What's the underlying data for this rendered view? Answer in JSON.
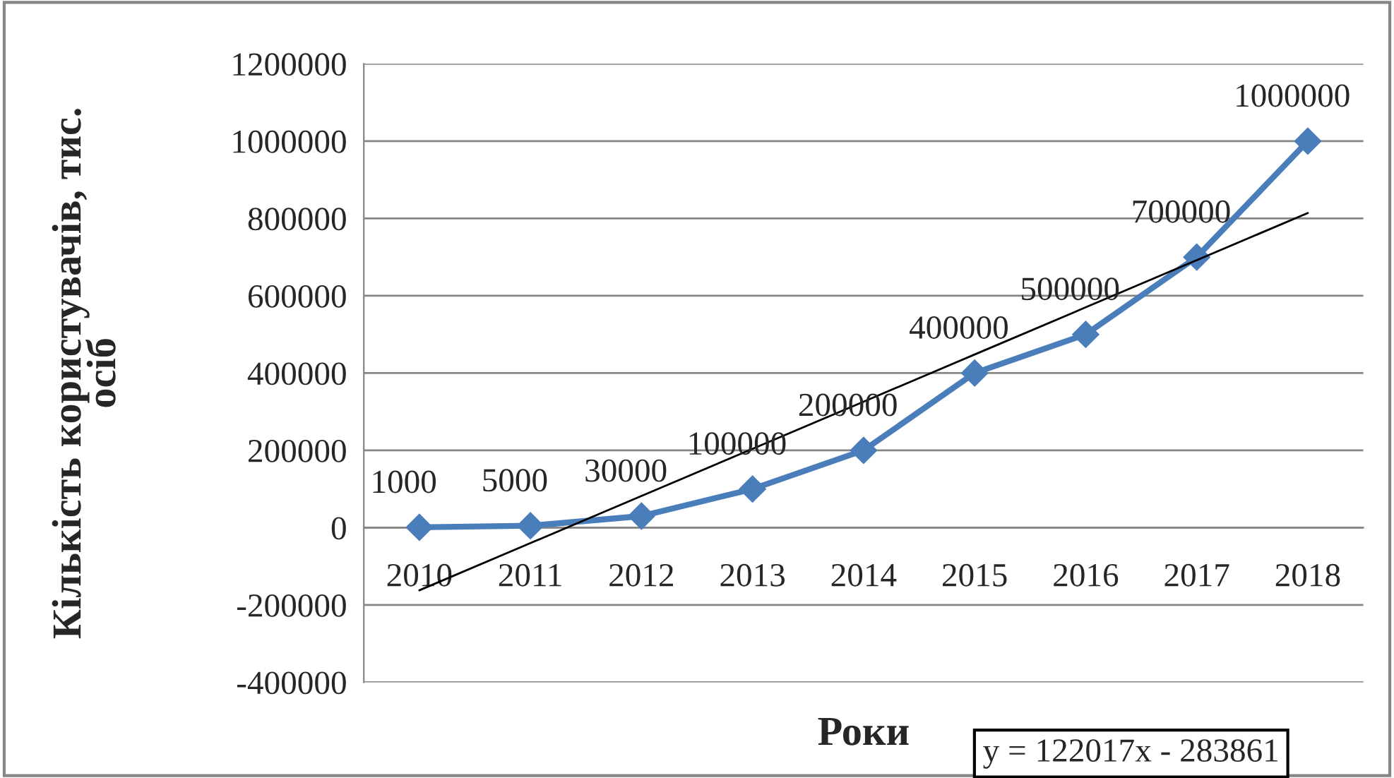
{
  "chart_data": {
    "type": "line",
    "xlabel": "Роки",
    "ylabel": "Кількість користувачів, тис.\nосіб",
    "categories": [
      "2010",
      "2011",
      "2012",
      "2013",
      "2014",
      "2015",
      "2016",
      "2017",
      "2018"
    ],
    "series": [
      {
        "color": "#4a7ebb",
        "marker": "diamond",
        "values": [
          1000,
          5000,
          30000,
          100000,
          200000,
          400000,
          500000,
          700000,
          1000000
        ],
        "value_labels": [
          "1000",
          "5000",
          "30000",
          "100000",
          "200000",
          "400000",
          "500000",
          "700000",
          "1000000"
        ]
      },
      {
        "type": "line",
        "color": "#000000",
        "marker": "none",
        "values": [
          -162000,
          -40000,
          82000,
          204000,
          326000,
          448000,
          570000,
          692000,
          814000
        ]
      }
    ],
    "ylim": [
      -400000,
      1200000
    ],
    "yticks": [
      -400000,
      -200000,
      0,
      200000,
      400000,
      600000,
      800000,
      1000000,
      1200000
    ],
    "grid": "y",
    "annotations": [
      "y = 122017x - 283861"
    ]
  }
}
